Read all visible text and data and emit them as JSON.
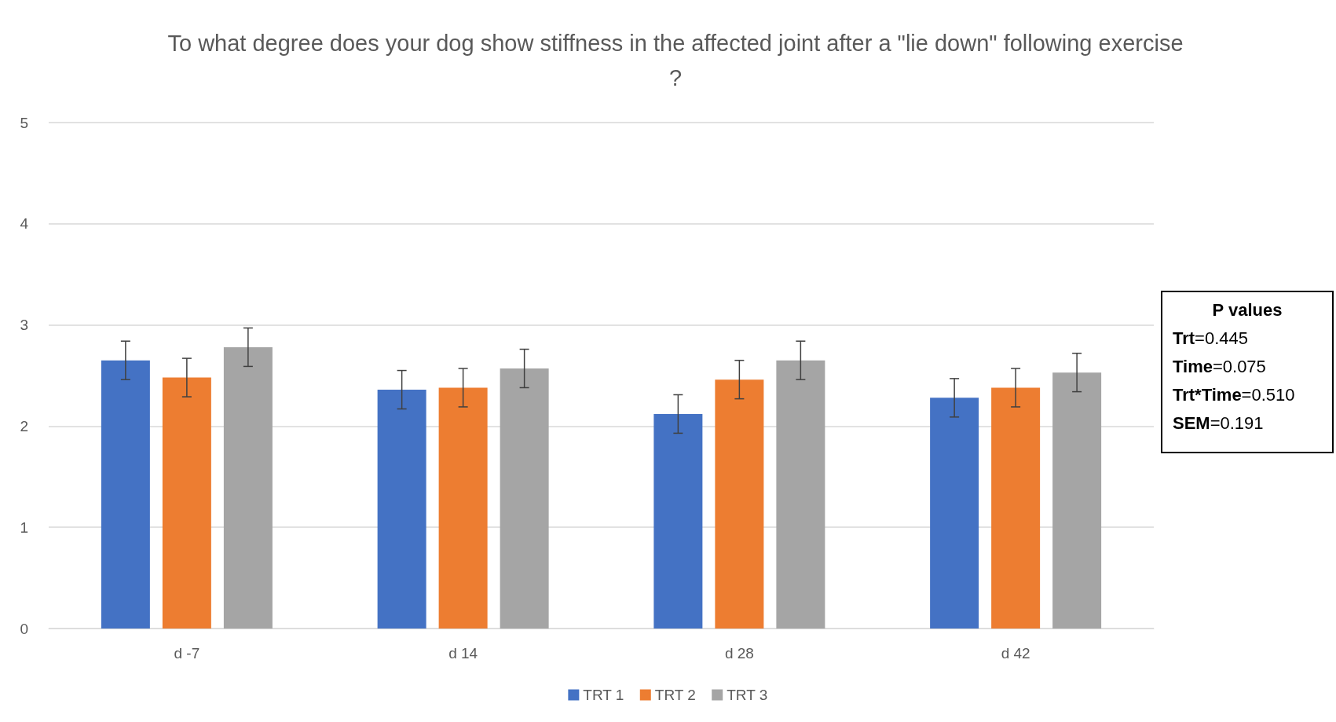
{
  "chart_data": {
    "type": "bar",
    "title": "To what degree does your dog show stiffness in the affected joint after a \"lie down\" following exercise?",
    "categories": [
      "d -7",
      "d 14",
      "d 28",
      "d 42"
    ],
    "series": [
      {
        "name": "TRT 1",
        "color": "#4472c4",
        "values": [
          2.65,
          2.36,
          2.12,
          2.28
        ],
        "errors": [
          0.19,
          0.19,
          0.19,
          0.19
        ]
      },
      {
        "name": "TRT 2",
        "color": "#ed7d31",
        "values": [
          2.48,
          2.38,
          2.46,
          2.38
        ],
        "errors": [
          0.19,
          0.19,
          0.19,
          0.19
        ]
      },
      {
        "name": "TRT 3",
        "color": "#a5a5a5",
        "values": [
          2.78,
          2.57,
          2.65,
          2.53
        ],
        "errors": [
          0.19,
          0.19,
          0.19,
          0.19
        ]
      }
    ],
    "ylim": [
      0,
      5
    ],
    "yticks": [
      0,
      1,
      2,
      3,
      4,
      5
    ],
    "grid": "y",
    "legend": "bottom",
    "annotations": [
      "P values",
      "Trt=0.445",
      "Time=0.075",
      "Trt*Time=0.510",
      "SEM=0.191"
    ]
  }
}
